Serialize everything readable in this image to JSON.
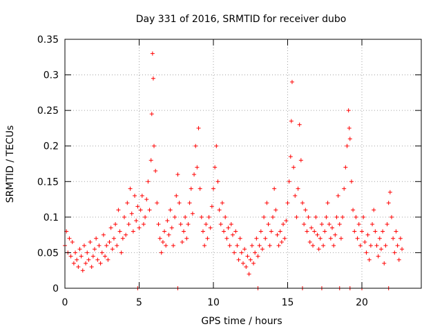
{
  "chart_data": {
    "type": "scatter",
    "title": "Day 331 of 2016, SRMTID for receiver dubo",
    "xlabel": "GPS time / hours",
    "ylabel": "SRMTID / TECUs",
    "xlim": [
      0,
      24
    ],
    "ylim": [
      0,
      0.35
    ],
    "xticks": [
      0,
      5,
      10,
      15,
      20
    ],
    "xtick_labels": [
      "0",
      "5",
      "10",
      "15",
      "20"
    ],
    "yticks": [
      0,
      0.05,
      0.1,
      0.15,
      0.2,
      0.25,
      0.3,
      0.35
    ],
    "ytick_labels": [
      "0",
      "0.05",
      "0.1",
      "0.15",
      "0.2",
      "0.25",
      "0.3",
      "0.35"
    ],
    "grid": true,
    "marker": "+",
    "color": "#ff0000",
    "series": [
      {
        "name": "SRMTID",
        "points": [
          [
            0.0,
            0.06
          ],
          [
            0.1,
            0.08
          ],
          [
            0.2,
            0.05
          ],
          [
            0.3,
            0.07
          ],
          [
            0.4,
            0.045
          ],
          [
            0.5,
            0.065
          ],
          [
            0.6,
            0.035
          ],
          [
            0.7,
            0.05
          ],
          [
            0.8,
            0.04
          ],
          [
            0.9,
            0.03
          ],
          [
            1.0,
            0.055
          ],
          [
            1.1,
            0.045
          ],
          [
            1.2,
            0.025
          ],
          [
            1.3,
            0.06
          ],
          [
            1.4,
            0.035
          ],
          [
            1.5,
            0.05
          ],
          [
            1.6,
            0.04
          ],
          [
            1.7,
            0.065
          ],
          [
            1.8,
            0.03
          ],
          [
            1.9,
            0.045
          ],
          [
            2.0,
            0.055
          ],
          [
            2.1,
            0.07
          ],
          [
            2.2,
            0.04
          ],
          [
            2.3,
            0.06
          ],
          [
            2.4,
            0.035
          ],
          [
            2.5,
            0.05
          ],
          [
            2.6,
            0.075
          ],
          [
            2.7,
            0.045
          ],
          [
            2.8,
            0.06
          ],
          [
            2.9,
            0.04
          ],
          [
            3.0,
            0.065
          ],
          [
            3.1,
            0.085
          ],
          [
            3.2,
            0.055
          ],
          [
            3.3,
            0.07
          ],
          [
            3.4,
            0.09
          ],
          [
            3.5,
            0.06
          ],
          [
            3.6,
            0.11
          ],
          [
            3.7,
            0.08
          ],
          [
            3.8,
            0.05
          ],
          [
            3.9,
            0.07
          ],
          [
            4.0,
            0.1
          ],
          [
            4.1,
            0.075
          ],
          [
            4.2,
            0.12
          ],
          [
            4.3,
            0.09
          ],
          [
            4.4,
            0.14
          ],
          [
            4.5,
            0.105
          ],
          [
            4.6,
            0.08
          ],
          [
            4.7,
            0.13
          ],
          [
            4.8,
            0.095
          ],
          [
            4.9,
            0.115
          ],
          [
            5.0,
            0.085
          ],
          [
            5.1,
            0.11
          ],
          [
            5.2,
            0.13
          ],
          [
            5.3,
            0.09
          ],
          [
            5.4,
            0.1
          ],
          [
            5.5,
            0.125
          ],
          [
            5.6,
            0.15
          ],
          [
            5.7,
            0.11
          ],
          [
            5.8,
            0.18
          ],
          [
            5.85,
            0.245
          ],
          [
            5.9,
            0.33
          ],
          [
            5.95,
            0.295
          ],
          [
            6.0,
            0.2
          ],
          [
            6.1,
            0.165
          ],
          [
            6.2,
            0.12
          ],
          [
            6.3,
            0.09
          ],
          [
            6.4,
            0.07
          ],
          [
            6.5,
            0.05
          ],
          [
            6.6,
            0.065
          ],
          [
            6.7,
            0.08
          ],
          [
            6.8,
            0.06
          ],
          [
            6.9,
            0.095
          ],
          [
            7.0,
            0.075
          ],
          [
            7.1,
            0.11
          ],
          [
            7.2,
            0.085
          ],
          [
            7.3,
            0.06
          ],
          [
            7.4,
            0.1
          ],
          [
            7.5,
            0.13
          ],
          [
            7.6,
            0.16
          ],
          [
            7.7,
            0.12
          ],
          [
            7.8,
            0.09
          ],
          [
            7.9,
            0.065
          ],
          [
            8.0,
            0.08
          ],
          [
            8.1,
            0.1
          ],
          [
            8.2,
            0.07
          ],
          [
            8.3,
            0.09
          ],
          [
            8.4,
            0.12
          ],
          [
            8.5,
            0.14
          ],
          [
            8.6,
            0.105
          ],
          [
            8.7,
            0.16
          ],
          [
            8.8,
            0.2
          ],
          [
            8.9,
            0.17
          ],
          [
            9.0,
            0.225
          ],
          [
            9.1,
            0.14
          ],
          [
            9.2,
            0.1
          ],
          [
            9.3,
            0.08
          ],
          [
            9.4,
            0.06
          ],
          [
            9.5,
            0.09
          ],
          [
            9.6,
            0.07
          ],
          [
            9.7,
            0.1
          ],
          [
            9.8,
            0.085
          ],
          [
            9.9,
            0.115
          ],
          [
            10.0,
            0.14
          ],
          [
            10.1,
            0.17
          ],
          [
            10.2,
            0.2
          ],
          [
            10.3,
            0.15
          ],
          [
            10.4,
            0.11
          ],
          [
            10.5,
            0.09
          ],
          [
            10.6,
            0.12
          ],
          [
            10.7,
            0.08
          ],
          [
            10.8,
            0.1
          ],
          [
            10.9,
            0.07
          ],
          [
            11.0,
            0.085
          ],
          [
            11.1,
            0.06
          ],
          [
            11.2,
            0.09
          ],
          [
            11.3,
            0.075
          ],
          [
            11.4,
            0.05
          ],
          [
            11.5,
            0.08
          ],
          [
            11.6,
            0.06
          ],
          [
            11.7,
            0.04
          ],
          [
            11.8,
            0.07
          ],
          [
            11.9,
            0.05
          ],
          [
            12.0,
            0.035
          ],
          [
            12.1,
            0.055
          ],
          [
            12.2,
            0.03
          ],
          [
            12.3,
            0.045
          ],
          [
            12.4,
            0.02
          ],
          [
            12.5,
            0.04
          ],
          [
            12.6,
            0.06
          ],
          [
            12.7,
            0.035
          ],
          [
            12.8,
            0.05
          ],
          [
            12.9,
            0.07
          ],
          [
            13.0,
            0.045
          ],
          [
            13.1,
            0.06
          ],
          [
            13.2,
            0.08
          ],
          [
            13.3,
            0.055
          ],
          [
            13.4,
            0.1
          ],
          [
            13.5,
            0.07
          ],
          [
            13.6,
            0.12
          ],
          [
            13.7,
            0.09
          ],
          [
            13.8,
            0.06
          ],
          [
            13.9,
            0.08
          ],
          [
            14.0,
            0.1
          ],
          [
            14.1,
            0.14
          ],
          [
            14.2,
            0.11
          ],
          [
            14.3,
            0.075
          ],
          [
            14.4,
            0.06
          ],
          [
            14.5,
            0.08
          ],
          [
            14.6,
            0.065
          ],
          [
            14.7,
            0.09
          ],
          [
            14.8,
            0.07
          ],
          [
            14.9,
            0.095
          ],
          [
            15.0,
            0.12
          ],
          [
            15.1,
            0.15
          ],
          [
            15.2,
            0.185
          ],
          [
            15.25,
            0.235
          ],
          [
            15.3,
            0.29
          ],
          [
            15.4,
            0.17
          ],
          [
            15.5,
            0.13
          ],
          [
            15.6,
            0.1
          ],
          [
            15.7,
            0.14
          ],
          [
            15.8,
            0.23
          ],
          [
            15.9,
            0.18
          ],
          [
            16.0,
            0.12
          ],
          [
            16.1,
            0.09
          ],
          [
            16.2,
            0.11
          ],
          [
            16.3,
            0.08
          ],
          [
            16.4,
            0.1
          ],
          [
            16.5,
            0.065
          ],
          [
            16.6,
            0.085
          ],
          [
            16.7,
            0.06
          ],
          [
            16.8,
            0.08
          ],
          [
            16.9,
            0.1
          ],
          [
            17.0,
            0.075
          ],
          [
            17.1,
            0.055
          ],
          [
            17.2,
            0.07
          ],
          [
            17.3,
            0.09
          ],
          [
            17.4,
            0.06
          ],
          [
            17.5,
            0.08
          ],
          [
            17.6,
            0.1
          ],
          [
            17.7,
            0.12
          ],
          [
            17.8,
            0.09
          ],
          [
            17.9,
            0.07
          ],
          [
            18.0,
            0.085
          ],
          [
            18.1,
            0.06
          ],
          [
            18.2,
            0.075
          ],
          [
            18.3,
            0.1
          ],
          [
            18.4,
            0.13
          ],
          [
            18.5,
            0.09
          ],
          [
            18.6,
            0.07
          ],
          [
            18.7,
            0.1
          ],
          [
            18.8,
            0.14
          ],
          [
            18.9,
            0.17
          ],
          [
            19.0,
            0.2
          ],
          [
            19.1,
            0.25
          ],
          [
            19.15,
            0.225
          ],
          [
            19.2,
            0.21
          ],
          [
            19.3,
            0.15
          ],
          [
            19.4,
            0.11
          ],
          [
            19.5,
            0.08
          ],
          [
            19.6,
            0.1
          ],
          [
            19.7,
            0.07
          ],
          [
            19.8,
            0.09
          ],
          [
            19.9,
            0.06
          ],
          [
            20.0,
            0.08
          ],
          [
            20.1,
            0.1
          ],
          [
            20.2,
            0.065
          ],
          [
            20.3,
            0.05
          ],
          [
            20.4,
            0.075
          ],
          [
            20.5,
            0.04
          ],
          [
            20.6,
            0.06
          ],
          [
            20.7,
            0.09
          ],
          [
            20.8,
            0.11
          ],
          [
            20.9,
            0.08
          ],
          [
            21.0,
            0.06
          ],
          [
            21.1,
            0.045
          ],
          [
            21.2,
            0.07
          ],
          [
            21.3,
            0.055
          ],
          [
            21.4,
            0.08
          ],
          [
            21.5,
            0.035
          ],
          [
            21.6,
            0.06
          ],
          [
            21.7,
            0.09
          ],
          [
            21.8,
            0.12
          ],
          [
            21.9,
            0.135
          ],
          [
            22.0,
            0.1
          ],
          [
            22.1,
            0.07
          ],
          [
            22.2,
            0.05
          ],
          [
            22.3,
            0.08
          ],
          [
            22.4,
            0.06
          ],
          [
            22.5,
            0.04
          ],
          [
            22.6,
            0.07
          ],
          [
            22.7,
            0.055
          ],
          [
            4.9,
            0.0
          ],
          [
            7.6,
            0.0
          ],
          [
            13.0,
            0.0
          ],
          [
            16.0,
            0.0
          ],
          [
            17.3,
            0.0
          ],
          [
            18.5,
            0.0
          ],
          [
            19.2,
            0.0
          ],
          [
            20.0,
            0.0
          ],
          [
            21.8,
            0.0
          ]
        ]
      }
    ]
  }
}
